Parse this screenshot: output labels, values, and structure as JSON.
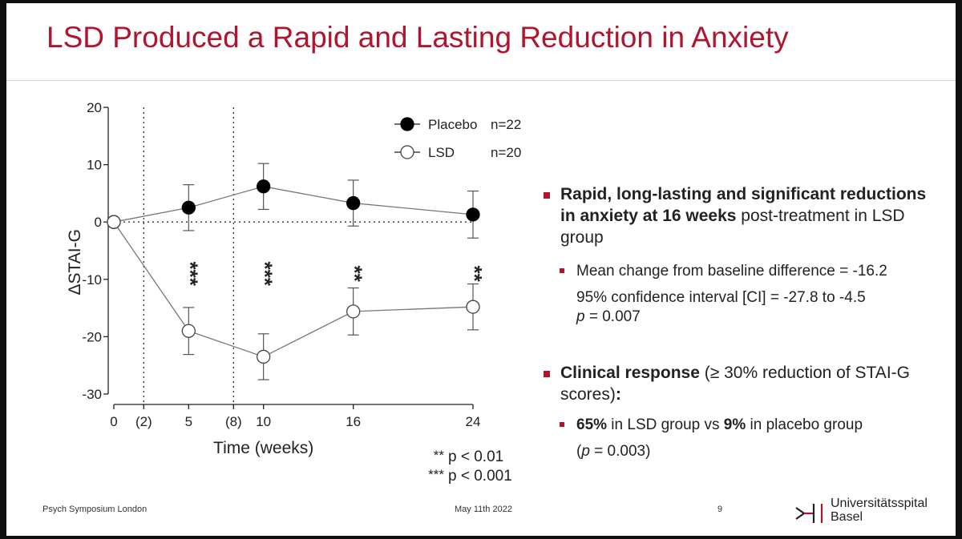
{
  "slide": {
    "title": "LSD Produced a Rapid and Lasting Reduction in Anxiety",
    "footer": {
      "left": "Psych Symposium London",
      "date": "May 11th 2022",
      "page": "9",
      "logo_line1": "Universitätsspital",
      "logo_line2": "Basel"
    },
    "bullets": [
      {
        "bold": "Rapid, long-lasting and significant reductions in anxiety at 16 weeks",
        "rest": " post-treatment in LSD group",
        "sub_line1": "Mean change from baseline difference = -16.2",
        "sub_line2": "95% confidence interval [CI] = -27.8 to -4.5",
        "sub_line3_p": "p",
        "sub_line3_rest": " = 0.007"
      },
      {
        "bold": "Clinical response",
        "rest": " (≥ 30% reduction of STAI-G scores)",
        "tail": ":",
        "sub_bold1": "65%",
        "sub_mid": " in LSD group vs ",
        "sub_bold2": "9%",
        "sub_end": " in placebo group",
        "sub_line2_open": "(",
        "sub_line2_p": "p",
        "sub_line2_rest": " = 0.003)"
      }
    ]
  },
  "chart_data": {
    "type": "line",
    "title": "",
    "xlabel": "Time (weeks)",
    "ylabel": "ΔSTAI-G",
    "xlim": [
      0,
      24
    ],
    "ylim": [
      -30,
      20
    ],
    "x_ticks": [
      0,
      2,
      5,
      8,
      10,
      16,
      24
    ],
    "x_tick_labels": [
      "0",
      "(2)",
      "5",
      "(8)",
      "10",
      "16",
      "24"
    ],
    "y_ticks": [
      20,
      10,
      0,
      -10,
      -20,
      -30
    ],
    "y_tick_labels": [
      "20",
      "10",
      "0",
      "-10",
      "-20",
      "-30"
    ],
    "vlines": [
      2,
      8
    ],
    "zero_line": 0,
    "series": [
      {
        "name": "Placebo",
        "n_label": "n=22",
        "marker": "filled",
        "x": [
          0,
          5,
          10,
          16,
          24
        ],
        "y": [
          0,
          2.5,
          6.2,
          3.3,
          1.3
        ],
        "err": [
          0,
          4.0,
          4.0,
          4.0,
          4.1
        ]
      },
      {
        "name": "LSD",
        "n_label": "n=20",
        "marker": "open",
        "x": [
          0,
          5,
          10,
          16,
          24
        ],
        "y": [
          0,
          -19.0,
          -23.5,
          -15.6,
          -14.8
        ],
        "err": [
          0,
          4.1,
          4.0,
          4.1,
          4.0
        ]
      }
    ],
    "significance": [
      {
        "x": 5,
        "label": "***"
      },
      {
        "x": 10,
        "label": "***"
      },
      {
        "x": 16,
        "label": "**"
      },
      {
        "x": 24,
        "label": "**"
      }
    ],
    "sig_legend": [
      {
        "stars": "**",
        "text": "p < 0.01"
      },
      {
        "stars": "***",
        "text": "p < 0.001"
      }
    ]
  }
}
